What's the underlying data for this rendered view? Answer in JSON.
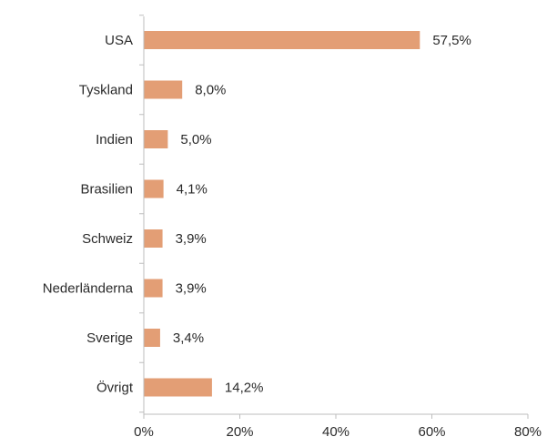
{
  "chart_data": {
    "type": "bar",
    "orientation": "horizontal",
    "categories": [
      "USA",
      "Tyskland",
      "Indien",
      "Brasilien",
      "Schweiz",
      "Nederländerna",
      "Sverige",
      "Övrigt"
    ],
    "values": [
      57.5,
      8.0,
      5.0,
      4.1,
      3.9,
      3.9,
      3.4,
      14.2
    ],
    "value_labels": [
      "57,5%",
      "8,0%",
      "5,0%",
      "4,1%",
      "3,9%",
      "3,9%",
      "3,4%",
      "14,2%"
    ],
    "xlim": [
      0,
      80
    ],
    "xticks": [
      0,
      20,
      40,
      60,
      80
    ],
    "xtick_labels": [
      "0%",
      "20%",
      "40%",
      "60%",
      "80%"
    ],
    "title": "",
    "xlabel": "",
    "ylabel": "",
    "grid": false,
    "legend": "none",
    "colors": {
      "bar": "#E39E75",
      "axis": "#bdbdbd",
      "text": "#2a2a2a"
    }
  }
}
